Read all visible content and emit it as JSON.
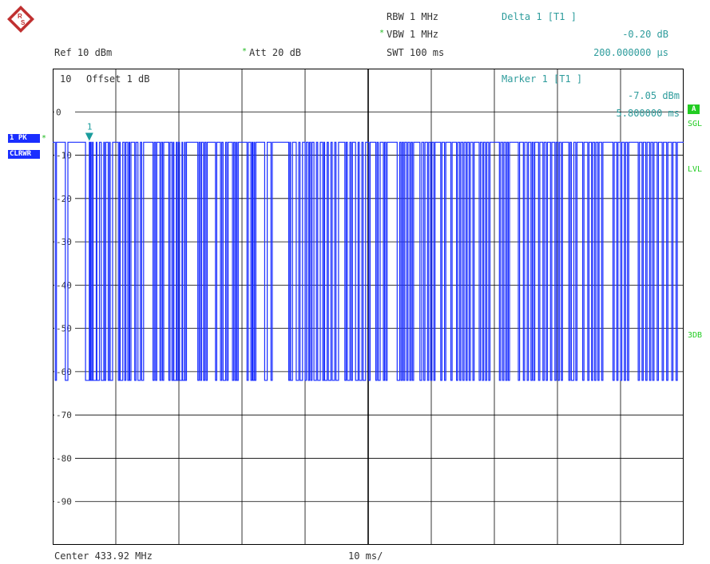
{
  "header": {
    "rbw": "RBW 1 MHz",
    "vbw": "VBW 1 MHz",
    "vbw_star": "*",
    "swt": "SWT 100 ms",
    "ref": "Ref  10 dBm",
    "att": "Att  20 dB",
    "att_star": "*"
  },
  "delta": {
    "title": "Delta 1 [T1 ]",
    "value": "-0.20 dB",
    "time": "200.000000 µs"
  },
  "marker": {
    "title": "Marker 1 [T1 ]",
    "value": "-7.05 dBm",
    "time": "5.800000 ms",
    "label": "1"
  },
  "screen": {
    "offset_label": "Offset  1 dB",
    "top_tick": "10",
    "center": "Center 433.92 MHz",
    "span": "10 ms/"
  },
  "trace_tags": {
    "pk": "1 PK",
    "clrwr": "CLRWR",
    "pk_star": "*"
  },
  "right_tags": {
    "a": "A",
    "sgl": "SGL",
    "lvl": "LVL",
    "db3": "3DB"
  },
  "colors": {
    "trace": "#1a2eff",
    "grid": "#000000",
    "marker": "#1a9c9c",
    "text": "#333333",
    "cyan_text": "#2e9c9c",
    "status_green": "#22cc22"
  },
  "chart_data": {
    "type": "line",
    "x_unit": "ms",
    "x_div": 10,
    "y_unit": "dBm",
    "ylim": [
      -100,
      10
    ],
    "yticks": [
      "0",
      "-10",
      "-20",
      "-30",
      "-40",
      "-50",
      "-60",
      "-70",
      "-80",
      "-90"
    ],
    "series": [
      {
        "high_level": -7,
        "low_level": -62,
        "pulses": [
          [
            0.4,
            0.6
          ],
          [
            2.0,
            2.4
          ],
          [
            5.2,
            5.8
          ],
          [
            5.9,
            6.0
          ],
          [
            6.1,
            6.3
          ],
          [
            6.4,
            6.9
          ],
          [
            7.0,
            7.4
          ],
          [
            7.7,
            8.1
          ],
          [
            8.2,
            8.4
          ],
          [
            8.8,
            9.0
          ],
          [
            9.1,
            9.5
          ],
          [
            10.4,
            10.6
          ],
          [
            10.7,
            11.1
          ],
          [
            11.4,
            11.6
          ],
          [
            11.9,
            12.1
          ],
          [
            12.2,
            12.4
          ],
          [
            13.0,
            13.2
          ],
          [
            13.5,
            13.9
          ],
          [
            14.1,
            14.4
          ],
          [
            15.9,
            16.1
          ],
          [
            16.3,
            16.5
          ],
          [
            17.0,
            17.2
          ],
          [
            17.4,
            17.6
          ],
          [
            18.4,
            18.6
          ],
          [
            18.9,
            19.1
          ],
          [
            19.2,
            19.6
          ],
          [
            19.7,
            19.9
          ],
          [
            20.1,
            20.5
          ],
          [
            20.6,
            20.9
          ],
          [
            21.0,
            21.2
          ],
          [
            23.0,
            23.2
          ],
          [
            23.4,
            23.6
          ],
          [
            23.9,
            24.1
          ],
          [
            24.3,
            24.5
          ],
          [
            25.8,
            26.0
          ],
          [
            26.6,
            26.8
          ],
          [
            27.0,
            27.4
          ],
          [
            27.6,
            27.8
          ],
          [
            28.5,
            28.7
          ],
          [
            28.9,
            29.1
          ],
          [
            29.2,
            29.4
          ],
          [
            30.8,
            31.0
          ],
          [
            31.4,
            31.6
          ],
          [
            31.7,
            31.9
          ],
          [
            32.0,
            32.2
          ],
          [
            33.6,
            34.0
          ],
          [
            34.6,
            34.8
          ],
          [
            37.4,
            37.6
          ],
          [
            37.7,
            38.0
          ],
          [
            38.6,
            39.0
          ],
          [
            39.2,
            39.6
          ],
          [
            40.0,
            40.2
          ],
          [
            40.5,
            40.7
          ],
          [
            40.9,
            41.1
          ],
          [
            41.4,
            41.8
          ],
          [
            42.0,
            42.4
          ],
          [
            42.8,
            43.0
          ],
          [
            43.1,
            43.5
          ],
          [
            43.7,
            44.1
          ],
          [
            44.3,
            44.7
          ],
          [
            44.9,
            45.3
          ],
          [
            46.3,
            46.5
          ],
          [
            46.7,
            47.1
          ],
          [
            47.3,
            47.5
          ],
          [
            48.0,
            48.4
          ],
          [
            48.6,
            49.0
          ],
          [
            49.2,
            49.6
          ],
          [
            50.1,
            50.3
          ],
          [
            51.2,
            51.4
          ],
          [
            51.6,
            51.9
          ],
          [
            52.4,
            52.6
          ],
          [
            52.8,
            53.0
          ],
          [
            54.6,
            55.0
          ],
          [
            55.2,
            55.4
          ],
          [
            55.6,
            55.8
          ],
          [
            56.1,
            56.3
          ],
          [
            56.6,
            56.8
          ],
          [
            57.0,
            57.2
          ],
          [
            58.2,
            58.5
          ],
          [
            58.8,
            59.0
          ],
          [
            59.4,
            59.6
          ],
          [
            59.9,
            60.1
          ],
          [
            60.4,
            60.6
          ],
          [
            61.5,
            61.7
          ],
          [
            62.1,
            62.3
          ],
          [
            63.1,
            63.3
          ],
          [
            64.0,
            64.2
          ],
          [
            64.5,
            64.7
          ],
          [
            65.0,
            65.2
          ],
          [
            65.5,
            65.7
          ],
          [
            66.0,
            66.2
          ],
          [
            66.6,
            66.8
          ],
          [
            67.6,
            67.8
          ],
          [
            68.1,
            68.3
          ],
          [
            68.6,
            68.8
          ],
          [
            69.1,
            69.3
          ],
          [
            70.8,
            71.0
          ],
          [
            71.3,
            71.5
          ],
          [
            71.8,
            72.0
          ],
          [
            72.2,
            72.4
          ],
          [
            73.8,
            74.0
          ],
          [
            74.6,
            74.8
          ],
          [
            75.2,
            75.4
          ],
          [
            75.8,
            76.0
          ],
          [
            76.2,
            76.4
          ],
          [
            77.0,
            77.2
          ],
          [
            77.7,
            77.9
          ],
          [
            78.2,
            78.4
          ],
          [
            78.9,
            79.1
          ],
          [
            79.6,
            79.8
          ],
          [
            80.1,
            80.3
          ],
          [
            80.6,
            80.8
          ],
          [
            81.8,
            82.0
          ],
          [
            82.2,
            82.6
          ],
          [
            82.9,
            83.1
          ],
          [
            84.0,
            84.2
          ],
          [
            84.8,
            85.0
          ],
          [
            85.4,
            85.6
          ],
          [
            85.9,
            86.1
          ],
          [
            86.4,
            86.6
          ],
          [
            87.0,
            87.2
          ],
          [
            88.8,
            89.0
          ],
          [
            89.4,
            89.6
          ],
          [
            90.0,
            90.2
          ],
          [
            90.6,
            90.8
          ],
          [
            91.1,
            91.3
          ],
          [
            92.8,
            93.0
          ],
          [
            93.4,
            93.6
          ],
          [
            94.0,
            94.2
          ],
          [
            94.6,
            94.8
          ],
          [
            95.1,
            95.3
          ],
          [
            95.8,
            96.0
          ],
          [
            96.6,
            96.8
          ],
          [
            97.3,
            97.5
          ],
          [
            98.1,
            98.3
          ],
          [
            98.8,
            99.0
          ]
        ]
      }
    ]
  }
}
